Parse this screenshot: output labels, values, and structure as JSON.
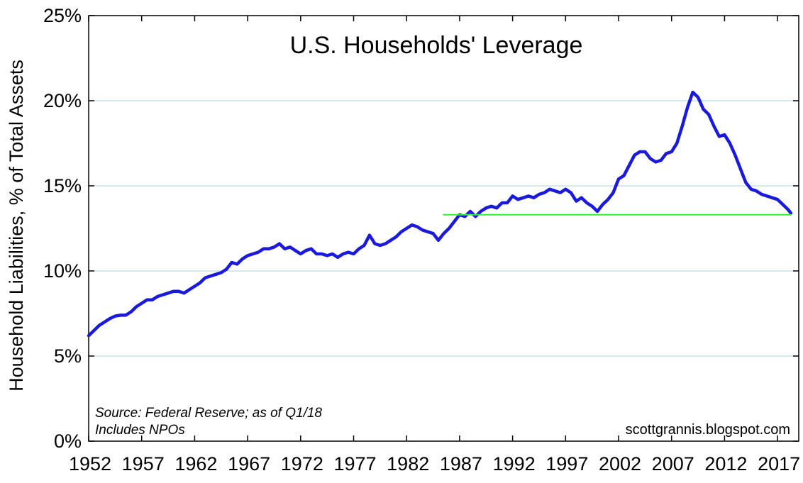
{
  "chart_data": {
    "type": "line",
    "title": "U.S. Households' Leverage",
    "ylabel": "Household Liabilities, % of Total Assets",
    "xlabel": "",
    "x_ticks": [
      "1952",
      "1957",
      "1962",
      "1967",
      "1972",
      "1977",
      "1982",
      "1987",
      "1992",
      "1997",
      "2002",
      "2007",
      "2012",
      "2017"
    ],
    "y_ticks": [
      "0%",
      "5%",
      "10%",
      "15%",
      "20%",
      "25%"
    ],
    "xlim": [
      1952,
      2019
    ],
    "ylim": [
      0,
      25
    ],
    "grid": "horizontal",
    "annotations": {
      "source_line1": "Source: Federal Reserve; as of Q1/18",
      "source_line2": "Includes NPOs",
      "credit": "scottgrannis.blogspot.com"
    },
    "series": [
      {
        "color": "#1a1adf",
        "points": [
          [
            1952.0,
            6.2
          ],
          [
            1952.5,
            6.5
          ],
          [
            1953.0,
            6.8
          ],
          [
            1953.5,
            7.0
          ],
          [
            1954.0,
            7.2
          ],
          [
            1954.5,
            7.35
          ],
          [
            1955.0,
            7.4
          ],
          [
            1955.5,
            7.4
          ],
          [
            1956.0,
            7.6
          ],
          [
            1956.5,
            7.9
          ],
          [
            1957.0,
            8.1
          ],
          [
            1957.5,
            8.3
          ],
          [
            1958.0,
            8.3
          ],
          [
            1958.5,
            8.5
          ],
          [
            1959.0,
            8.6
          ],
          [
            1959.5,
            8.7
          ],
          [
            1960.0,
            8.8
          ],
          [
            1960.5,
            8.8
          ],
          [
            1961.0,
            8.7
          ],
          [
            1961.5,
            8.9
          ],
          [
            1962.0,
            9.1
          ],
          [
            1962.5,
            9.3
          ],
          [
            1963.0,
            9.6
          ],
          [
            1963.5,
            9.7
          ],
          [
            1964.0,
            9.8
          ],
          [
            1964.5,
            9.9
          ],
          [
            1965.0,
            10.1
          ],
          [
            1965.5,
            10.5
          ],
          [
            1966.0,
            10.4
          ],
          [
            1966.5,
            10.7
          ],
          [
            1967.0,
            10.9
          ],
          [
            1967.5,
            11.0
          ],
          [
            1968.0,
            11.1
          ],
          [
            1968.5,
            11.3
          ],
          [
            1969.0,
            11.3
          ],
          [
            1969.5,
            11.4
          ],
          [
            1970.0,
            11.6
          ],
          [
            1970.5,
            11.3
          ],
          [
            1971.0,
            11.4
          ],
          [
            1971.5,
            11.2
          ],
          [
            1972.0,
            11.0
          ],
          [
            1972.5,
            11.2
          ],
          [
            1973.0,
            11.3
          ],
          [
            1973.5,
            11.0
          ],
          [
            1974.0,
            11.0
          ],
          [
            1974.5,
            10.9
          ],
          [
            1975.0,
            11.0
          ],
          [
            1975.5,
            10.8
          ],
          [
            1976.0,
            11.0
          ],
          [
            1976.5,
            11.1
          ],
          [
            1977.0,
            11.0
          ],
          [
            1977.5,
            11.3
          ],
          [
            1978.0,
            11.5
          ],
          [
            1978.5,
            12.1
          ],
          [
            1979.0,
            11.6
          ],
          [
            1979.5,
            11.5
          ],
          [
            1980.0,
            11.6
          ],
          [
            1980.5,
            11.8
          ],
          [
            1981.0,
            12.0
          ],
          [
            1981.5,
            12.3
          ],
          [
            1982.0,
            12.5
          ],
          [
            1982.5,
            12.7
          ],
          [
            1983.0,
            12.6
          ],
          [
            1983.5,
            12.4
          ],
          [
            1984.0,
            12.3
          ],
          [
            1984.5,
            12.2
          ],
          [
            1985.0,
            11.8
          ],
          [
            1985.5,
            12.2
          ],
          [
            1986.0,
            12.5
          ],
          [
            1986.5,
            12.9
          ],
          [
            1987.0,
            13.3
          ],
          [
            1987.5,
            13.2
          ],
          [
            1988.0,
            13.5
          ],
          [
            1988.5,
            13.2
          ],
          [
            1989.0,
            13.5
          ],
          [
            1989.5,
            13.7
          ],
          [
            1990.0,
            13.8
          ],
          [
            1990.5,
            13.7
          ],
          [
            1991.0,
            14.0
          ],
          [
            1991.5,
            14.0
          ],
          [
            1992.0,
            14.4
          ],
          [
            1992.5,
            14.2
          ],
          [
            1993.0,
            14.3
          ],
          [
            1993.5,
            14.4
          ],
          [
            1994.0,
            14.3
          ],
          [
            1994.5,
            14.5
          ],
          [
            1995.0,
            14.6
          ],
          [
            1995.5,
            14.8
          ],
          [
            1996.0,
            14.7
          ],
          [
            1996.5,
            14.6
          ],
          [
            1997.0,
            14.8
          ],
          [
            1997.5,
            14.6
          ],
          [
            1998.0,
            14.1
          ],
          [
            1998.5,
            14.3
          ],
          [
            1999.0,
            14.0
          ],
          [
            1999.5,
            13.8
          ],
          [
            2000.0,
            13.5
          ],
          [
            2000.5,
            13.9
          ],
          [
            2001.0,
            14.2
          ],
          [
            2001.5,
            14.6
          ],
          [
            2002.0,
            15.4
          ],
          [
            2002.5,
            15.6
          ],
          [
            2003.0,
            16.2
          ],
          [
            2003.5,
            16.8
          ],
          [
            2004.0,
            17.0
          ],
          [
            2004.5,
            17.0
          ],
          [
            2005.0,
            16.6
          ],
          [
            2005.5,
            16.4
          ],
          [
            2006.0,
            16.5
          ],
          [
            2006.5,
            16.9
          ],
          [
            2007.0,
            17.0
          ],
          [
            2007.5,
            17.5
          ],
          [
            2008.0,
            18.5
          ],
          [
            2008.5,
            19.6
          ],
          [
            2009.0,
            20.5
          ],
          [
            2009.5,
            20.2
          ],
          [
            2010.0,
            19.5
          ],
          [
            2010.5,
            19.2
          ],
          [
            2011.0,
            18.5
          ],
          [
            2011.5,
            17.9
          ],
          [
            2012.0,
            18.0
          ],
          [
            2012.5,
            17.5
          ],
          [
            2013.0,
            16.8
          ],
          [
            2013.5,
            16.0
          ],
          [
            2014.0,
            15.2
          ],
          [
            2014.5,
            14.8
          ],
          [
            2015.0,
            14.7
          ],
          [
            2015.5,
            14.5
          ],
          [
            2016.0,
            14.4
          ],
          [
            2016.5,
            14.3
          ],
          [
            2017.0,
            14.2
          ],
          [
            2017.5,
            13.9
          ],
          [
            2018.0,
            13.6
          ],
          [
            2018.25,
            13.4
          ]
        ]
      },
      {
        "color": "#33ee33",
        "points": [
          [
            1985.5,
            13.3
          ],
          [
            2018.25,
            13.3
          ]
        ]
      }
    ]
  }
}
